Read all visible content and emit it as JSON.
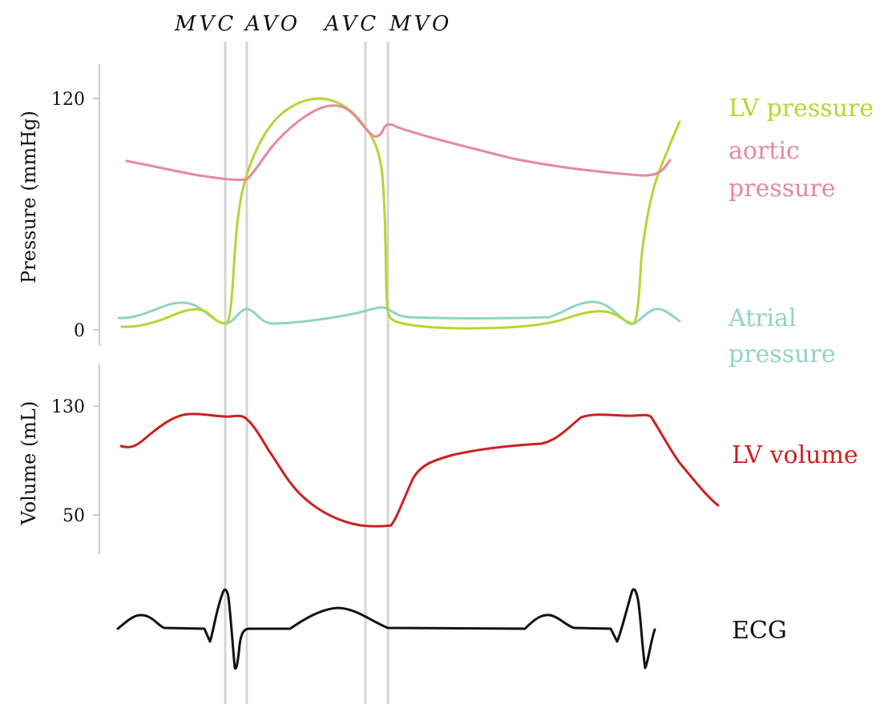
{
  "events": [
    "MVC",
    "AVO",
    "AVC",
    "MVO"
  ],
  "pressure_axis": {
    "title": "Pressure (mmHg)",
    "ticks": [
      "120",
      "0"
    ]
  },
  "volume_axis": {
    "title": "Volume (mL)",
    "ticks": [
      "130",
      "50"
    ]
  },
  "series_labels": {
    "lv_pressure": "LV pressure",
    "aortic_line1": "aortic",
    "aortic_line2": "pressure",
    "atrial_line1": "Atrial",
    "atrial_line2": "pressure",
    "lv_volume": "LV volume",
    "ecg": "ECG"
  },
  "colors": {
    "lv_pressure": "#b8d433",
    "aortic_pressure": "#e58a9c",
    "atrial_pressure": "#8fd3c8",
    "lv_volume": "#cc2020",
    "ecg": "#111111",
    "event_lines": "#cfcfcf",
    "axis": "#cccccc"
  }
}
